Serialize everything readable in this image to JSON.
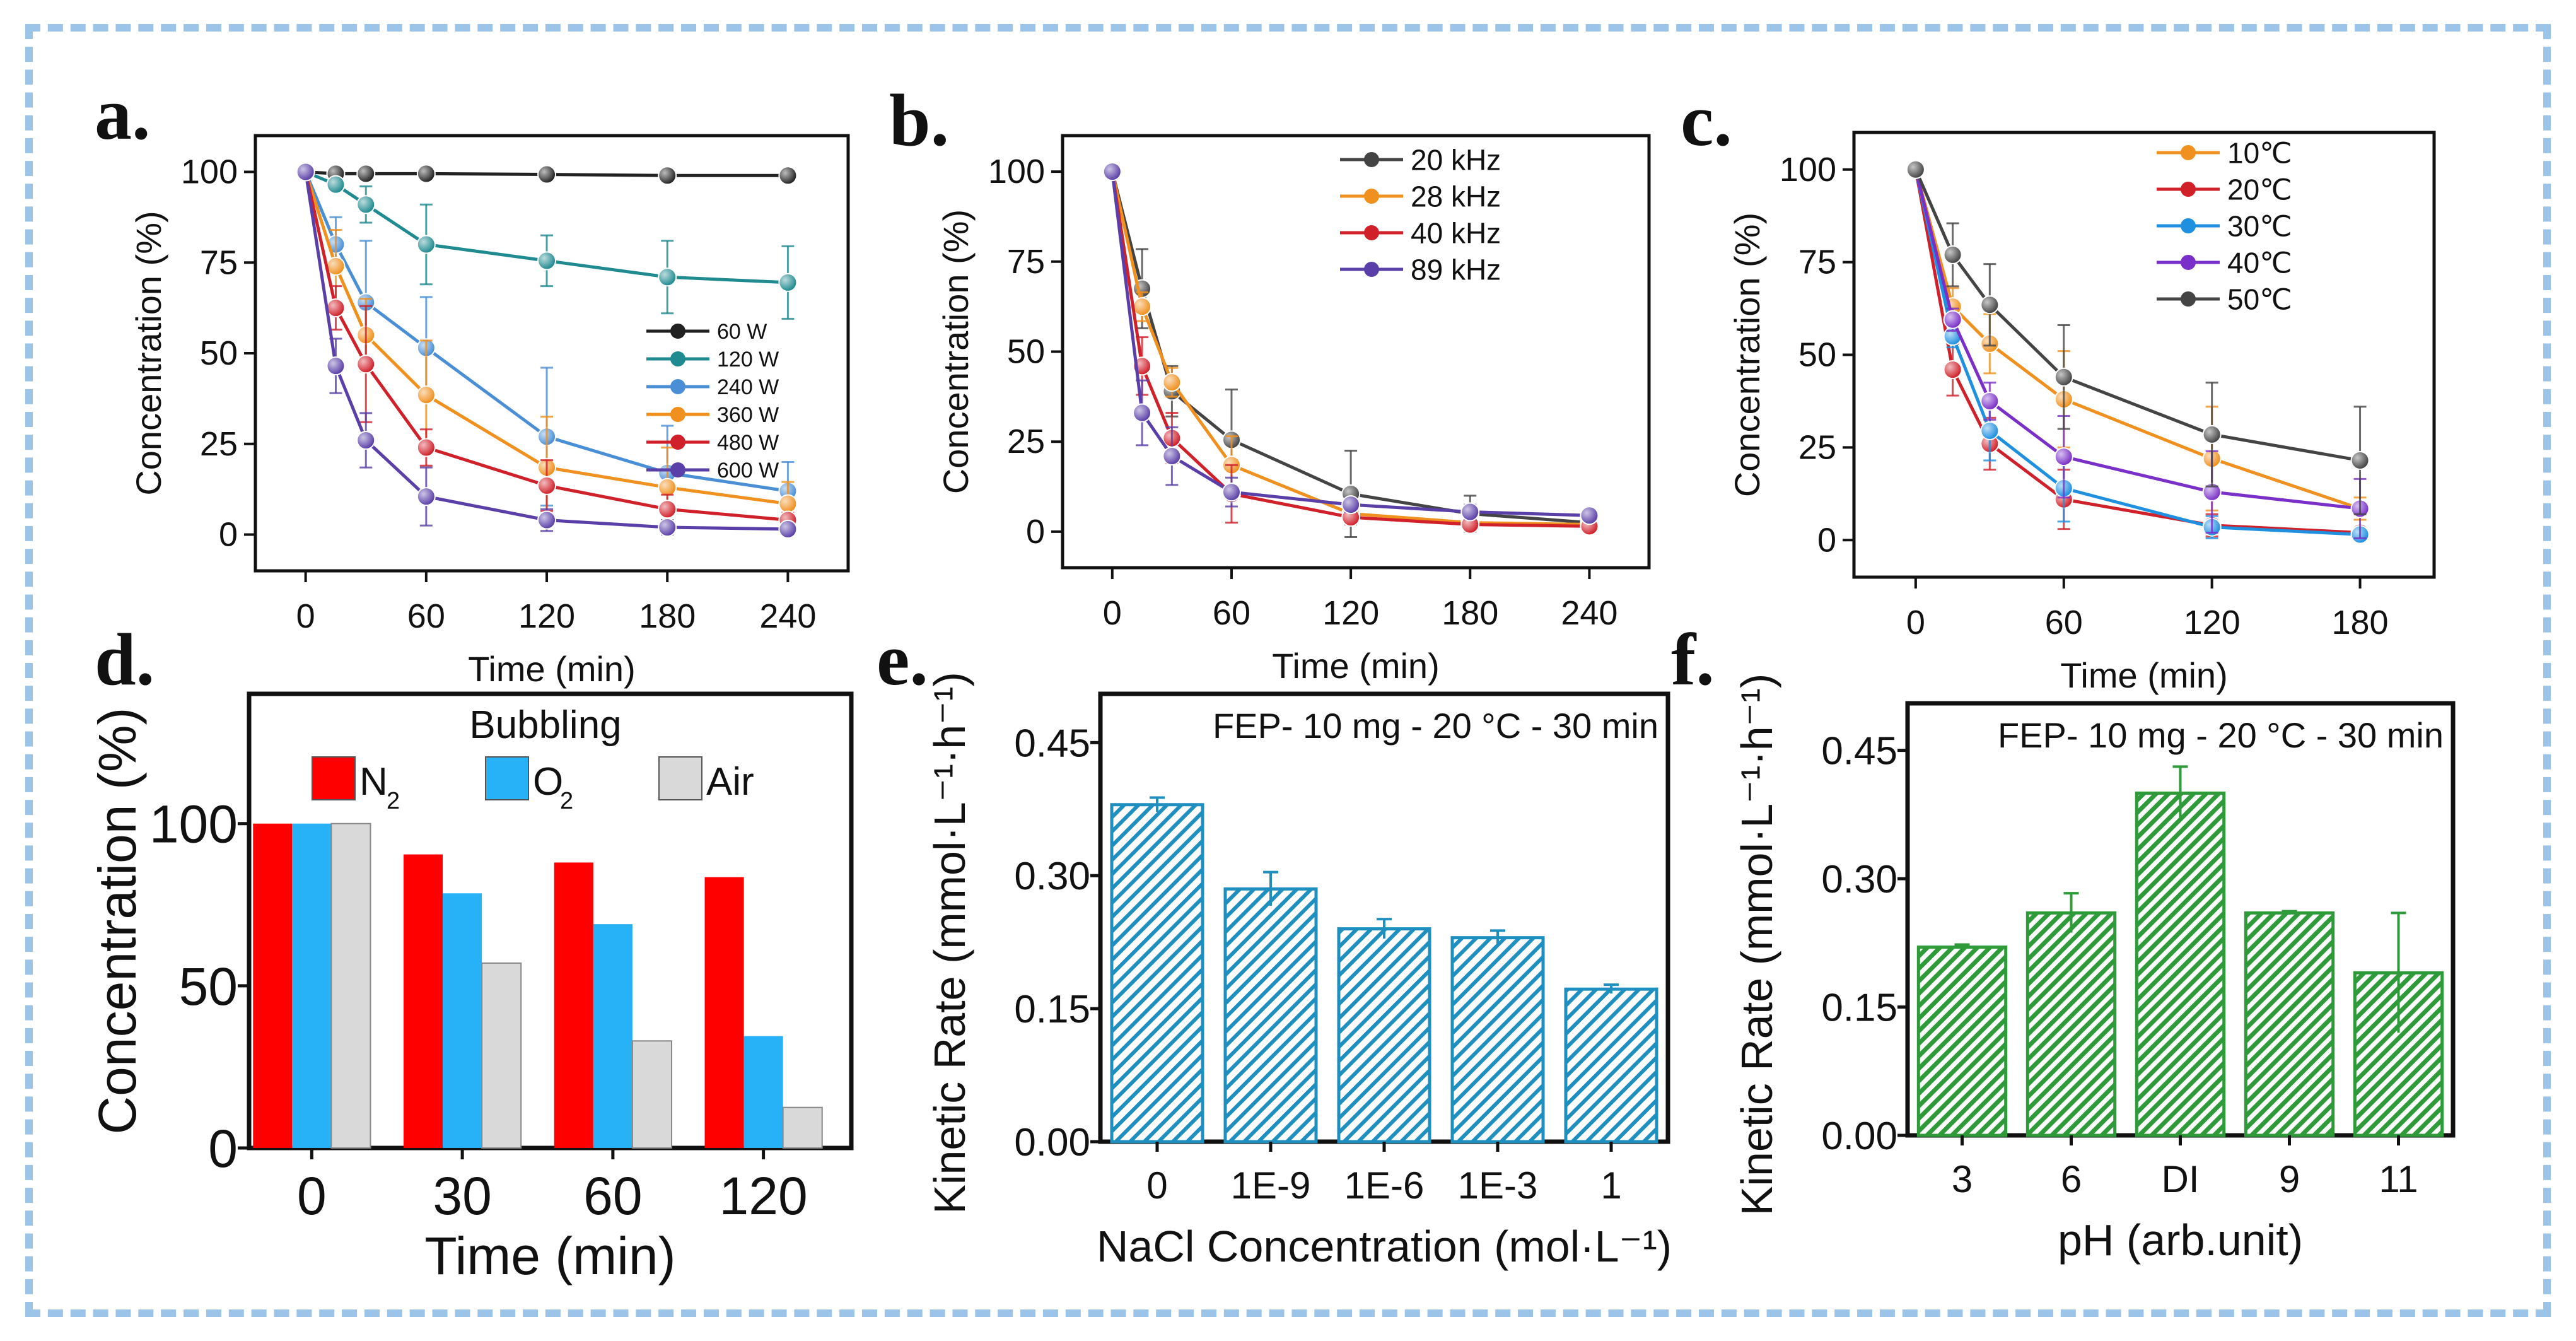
{
  "chart_data": [
    {
      "panel": "a.",
      "type": "line",
      "xlabel": "Time (min)",
      "ylabel": "Concentration (%)",
      "x": [
        0,
        15,
        30,
        60,
        120,
        180,
        240
      ],
      "xticks": [
        0,
        60,
        120,
        180,
        240
      ],
      "yticks": [
        0,
        25,
        50,
        75,
        100
      ],
      "xlim": [
        -25,
        270
      ],
      "ylim": [
        -10,
        110
      ],
      "legend_position": "right",
      "series": [
        {
          "name": "60 W",
          "color": "#222222",
          "values": [
            100,
            99.5,
            99.5,
            99.5,
            99.3,
            99,
            99
          ],
          "err": [
            0,
            0,
            0,
            0,
            0,
            0,
            0
          ]
        },
        {
          "name": "120 W",
          "color": "#1f8a8f",
          "values": [
            100,
            96.5,
            91,
            80,
            75.5,
            71,
            69.5
          ],
          "err": [
            0,
            1,
            5,
            11,
            7,
            10,
            10
          ]
        },
        {
          "name": "240 W",
          "color": "#4a8fd6",
          "values": [
            100,
            80,
            64,
            51.5,
            27,
            17,
            12
          ],
          "err": [
            0,
            7.5,
            17,
            14,
            19,
            13,
            8
          ]
        },
        {
          "name": "360 W",
          "color": "#f0901e",
          "values": [
            100,
            74,
            55,
            38.5,
            18.5,
            13,
            8.5
          ],
          "err": [
            0,
            10,
            10,
            15,
            14,
            11,
            6
          ]
        },
        {
          "name": "480 W",
          "color": "#d0202a",
          "values": [
            100,
            62.5,
            47,
            24,
            13.5,
            7,
            4
          ],
          "err": [
            0,
            6,
            16,
            5,
            7,
            4,
            2
          ]
        },
        {
          "name": "600 W",
          "color": "#5a3fa8",
          "values": [
            100,
            46.5,
            26,
            10.5,
            4,
            2,
            1.5
          ],
          "err": [
            0,
            7.5,
            7.5,
            8,
            3,
            2,
            1.5
          ]
        }
      ]
    },
    {
      "panel": "b.",
      "type": "line",
      "xlabel": "Time (min)",
      "ylabel": "Concentration (%)",
      "x": [
        0,
        15,
        30,
        60,
        120,
        180,
        240
      ],
      "xticks": [
        0,
        60,
        120,
        180,
        240
      ],
      "yticks": [
        0,
        25,
        50,
        75,
        100
      ],
      "xlim": [
        -25,
        270
      ],
      "ylim": [
        -10,
        110
      ],
      "legend_position": "top-right",
      "series": [
        {
          "name": "20 kHz",
          "color": "#444444",
          "values": [
            100,
            67.5,
            39,
            25.5,
            10.5,
            5,
            2.5
          ],
          "err": [
            0,
            11,
            7,
            14,
            12,
            5,
            1
          ]
        },
        {
          "name": "28 kHz",
          "color": "#f0901e",
          "values": [
            100,
            62.5,
            41.5,
            18.5,
            5,
            2.5,
            2
          ],
          "err": [
            0,
            4,
            4,
            8,
            2,
            1,
            1
          ]
        },
        {
          "name": "40 kHz",
          "color": "#d0202a",
          "values": [
            100,
            46,
            26,
            10.5,
            4,
            2,
            1.5
          ],
          "err": [
            0,
            8,
            7,
            8,
            2,
            1,
            1
          ]
        },
        {
          "name": "89 kHz",
          "color": "#5a3fa8",
          "values": [
            100,
            33,
            21,
            11,
            7.5,
            5.5,
            4.5
          ],
          "err": [
            0,
            9,
            8,
            4,
            2,
            2,
            1
          ]
        }
      ]
    },
    {
      "panel": "c.",
      "type": "line",
      "xlabel": "Time (min)",
      "ylabel": "Concentration (%)",
      "x": [
        0,
        15,
        30,
        60,
        120,
        180
      ],
      "xticks": [
        0,
        60,
        120,
        180
      ],
      "yticks": [
        0,
        25,
        50,
        75,
        100
      ],
      "xlim": [
        -25,
        210
      ],
      "ylim": [
        -10,
        110
      ],
      "legend_position": "top-right",
      "series": [
        {
          "name": "10℃",
          "color": "#f0901e",
          "values": [
            100,
            63,
            53,
            38,
            22,
            8.5
          ],
          "err": [
            0,
            5,
            8,
            13,
            14,
            3
          ]
        },
        {
          "name": "20℃",
          "color": "#d0202a",
          "values": [
            100,
            46,
            26,
            11,
            4,
            2
          ],
          "err": [
            0,
            7,
            7,
            8,
            3,
            1
          ]
        },
        {
          "name": "30℃",
          "color": "#1f8fe0",
          "values": [
            100,
            55,
            29.5,
            14,
            3.5,
            1.5
          ],
          "err": [
            0,
            3,
            8,
            9,
            3,
            1
          ]
        },
        {
          "name": "40℃",
          "color": "#7a2fc8",
          "values": [
            100,
            59.5,
            37.5,
            22.5,
            13,
            8.5
          ],
          "err": [
            0,
            3,
            5,
            11,
            11,
            8
          ]
        },
        {
          "name": "50℃",
          "color": "#444444",
          "values": [
            100,
            77,
            63.5,
            44,
            28.5,
            21.5
          ],
          "err": [
            0,
            8.5,
            11,
            14,
            14,
            14.5
          ]
        }
      ]
    },
    {
      "panel": "d.",
      "type": "bar",
      "xlabel": "Time (min)",
      "ylabel": "Concentration (%)",
      "categories": [
        "0",
        "30",
        "60",
        "120"
      ],
      "yticks": [
        0,
        50,
        100
      ],
      "ylim": [
        0,
        140
      ],
      "legend_title": "Bubbling",
      "legend_position": "top",
      "series": [
        {
          "name": "N",
          "sub": "2",
          "color": "#ff0000",
          "values": [
            100,
            90.5,
            88,
            83.5
          ]
        },
        {
          "name": "O",
          "sub": "2",
          "color": "#27b2f8",
          "values": [
            100,
            78.5,
            69,
            34.5
          ]
        },
        {
          "name": "Air",
          "sub": "",
          "color": "#d9d9d9",
          "values": [
            100,
            57,
            33,
            12.5
          ]
        }
      ]
    },
    {
      "panel": "e.",
      "type": "bar",
      "xlabel": "NaCl Concentration (mol·L⁻¹)",
      "ylabel": "Kinetic Rate (mmol·L⁻¹·h⁻¹)",
      "annotation": "FEP- 10 mg - 20 °C - 30 min",
      "categories": [
        "0",
        "1E-9",
        "1E-6",
        "1E-3",
        "1"
      ],
      "values": [
        0.38,
        0.285,
        0.24,
        0.23,
        0.172
      ],
      "err": [
        0.008,
        0.019,
        0.011,
        0.008,
        0.005
      ],
      "color": "#1f8fc0",
      "yticks": [
        "0.00",
        "0.15",
        "0.30",
        "0.45"
      ],
      "ylim": [
        0,
        0.505
      ]
    },
    {
      "panel": "f.",
      "type": "bar",
      "xlabel": "pH (arb.unit)",
      "ylabel": "Kinetic Rate (mmol·L⁻¹·h⁻¹)",
      "annotation": "FEP- 10 mg - 20 °C - 30 min",
      "categories": [
        "3",
        "6",
        "DI",
        "9",
        "11"
      ],
      "values": [
        0.22,
        0.26,
        0.4,
        0.26,
        0.19
      ],
      "err": [
        0.003,
        0.023,
        0.031,
        0.002,
        0.07
      ],
      "color": "#2e9a3a",
      "yticks": [
        "0.00",
        "0.15",
        "0.30",
        "0.45"
      ],
      "ylim": [
        0,
        0.505
      ]
    }
  ]
}
